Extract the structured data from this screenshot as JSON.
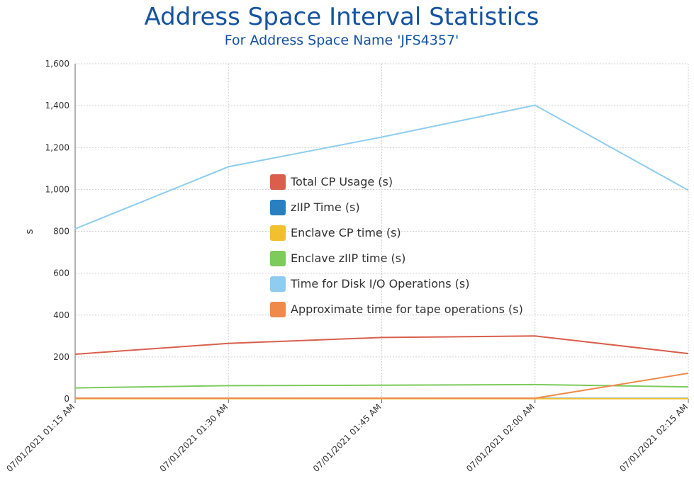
{
  "chart_data": {
    "type": "line",
    "title": "Address Space Interval Statistics",
    "subtitle": "For Address Space Name 'JFS4357'",
    "ylabel": "s",
    "xlabel": "",
    "ylim": [
      0,
      1600
    ],
    "yticks": [
      0,
      200,
      400,
      600,
      800,
      1000,
      1200,
      1400,
      1600
    ],
    "ytick_labels": [
      "0",
      "200",
      "400",
      "600",
      "800",
      "1,000",
      "1,200",
      "1,400",
      "1,600"
    ],
    "categories": [
      "07/01/2021 01:15 AM",
      "07/01/2021 01:30 AM",
      "07/01/2021 01:45 AM",
      "07/01/2021 02:00 AM",
      "07/01/2021 02:15 AM"
    ],
    "grid": true,
    "legend_position": "center",
    "series": [
      {
        "name": "Total CP Usage (s)",
        "color": "#d95f4c",
        "values": [
          213,
          265,
          293,
          300,
          216
        ]
      },
      {
        "name": "zIIP Time (s)",
        "color": "#2a7fc0",
        "values": [
          2,
          2,
          2,
          2,
          2
        ]
      },
      {
        "name": "Enclave CP time (s)",
        "color": "#f0c030",
        "values": [
          1,
          1,
          1,
          1,
          1
        ]
      },
      {
        "name": "Enclave zIIP time (s)",
        "color": "#7ccb5c",
        "values": [
          52,
          63,
          65,
          68,
          57
        ]
      },
      {
        "name": "Time for Disk I/O Operations (s)",
        "color": "#8ecdf0",
        "values": [
          812,
          1108,
          1250,
          1402,
          996
        ]
      },
      {
        "name": "Approximate time for tape operations (s)",
        "color": "#f08a4b",
        "values": [
          3,
          3,
          3,
          3,
          122
        ]
      }
    ]
  }
}
